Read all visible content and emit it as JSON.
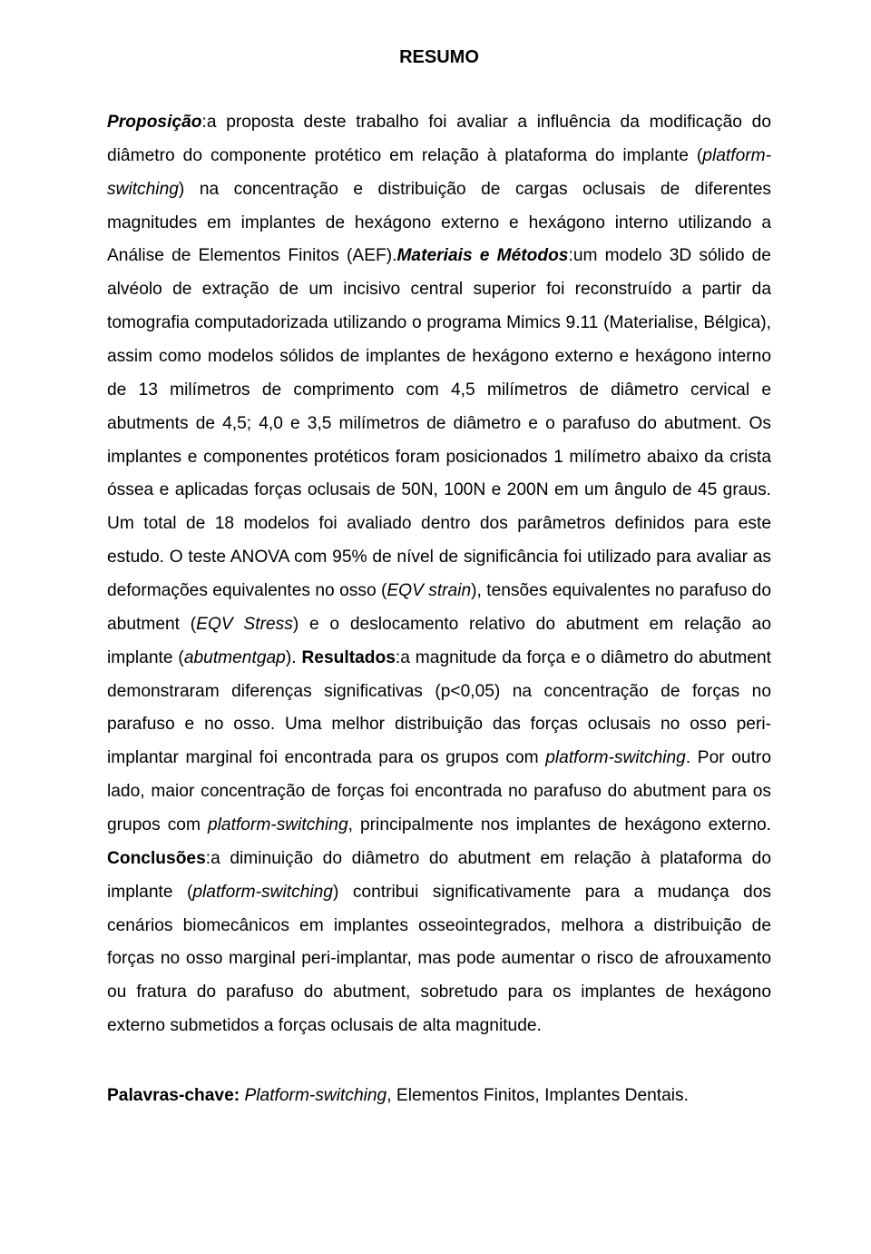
{
  "title": "RESUMO",
  "abstract": {
    "h_proposicao": "Proposição",
    "t_proposicao_a": ":a proposta deste trabalho foi avaliar a influência da modificação do diâmetro do componente protético em relação à plataforma do implante (",
    "i_platformswitching": "platform-switching",
    "t_proposicao_b": ") na concentração e distribuição de cargas oclusais de diferentes magnitudes em implantes de hexágono externo e hexágono interno utilizando a Análise de Elementos Finitos (AEF).",
    "h_materiais": "Materiais e Métodos",
    "t_materiais_a": ":um modelo 3D sólido de alvéolo de extração de um incisivo central superior foi reconstruído a partir da tomografia computadorizada utilizando o programa Mimics 9.11 (Materialise, Bélgica), assim como modelos sólidos de implantes de hexágono externo e hexágono interno de 13 milímetros de comprimento com 4,5 milímetros de diâmetro cervical e abutments de 4,5; 4,0 e 3,5 milímetros de diâmetro e o parafuso do abutment. Os implantes e componentes protéticos foram posicionados 1 milímetro abaixo da crista óssea e aplicadas forças oclusais de 50N, 100N e 200N em um ângulo de 45 graus. Um total de 18 modelos foi avaliado dentro dos parâmetros definidos para este estudo. O teste ANOVA com 95% de nível de significância foi utilizado para avaliar as deformações equivalentes no osso (",
    "i_eqvstrain": "EQV strain",
    "t_materiais_b": "), tensões equivalentes no parafuso do abutment (",
    "i_eqvstress": "EQV Stress",
    "t_materiais_c": ") e o deslocamento relativo do abutment em relação ao implante (",
    "i_abutmentgap": "abutmentgap",
    "t_materiais_d": "). ",
    "h_resultados": "Resultados",
    "t_resultados_a": ":a magnitude da força e o diâmetro do abutment demonstraram diferenças significativas (p<0,05) na concentração de forças no parafuso e no osso. Uma melhor distribuição das forças oclusais no osso peri-implantar marginal foi encontrada para os grupos com ",
    "i_ps1": "platform-switching",
    "t_resultados_b": ". Por outro lado, maior concentração de forças foi encontrada no parafuso do abutment para os grupos com ",
    "i_ps2": "platform-switching",
    "t_resultados_c": ", principalmente nos implantes de hexágono externo. ",
    "h_conclusoes": "Conclusões",
    "t_conclusoes_a": ":a diminuição do diâmetro do abutment em relação à plataforma do implante (",
    "i_ps3": "platform-switching",
    "t_conclusoes_b": ") contribui significativamente para a mudança dos cenários biomecânicos em implantes osseointegrados, melhora a distribuição de forças no osso marginal peri-implantar, mas pode aumentar o risco de afrouxamento ou fratura do parafuso do abutment, sobretudo para os implantes de hexágono externo submetidos a forças oclusais de alta magnitude."
  },
  "keywords": {
    "label": "Palavras-chave:",
    "kw1": "Platform-switching",
    "sep1": ", ",
    "kw2": "Elementos Finitos, Implantes Dentais."
  }
}
